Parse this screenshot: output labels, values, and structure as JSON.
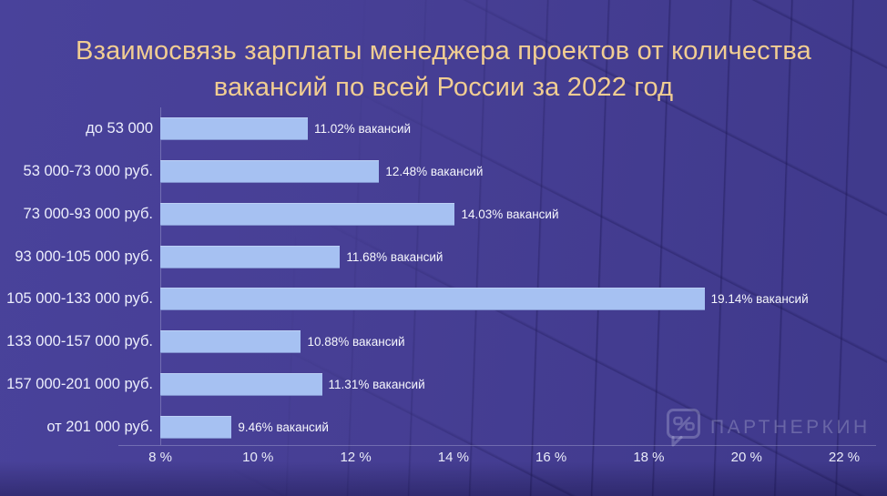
{
  "title": {
    "line1": "Взаимосвязь зарплаты менеджера проектов от количества",
    "line2": "вакансий по всей России за 2022 год"
  },
  "chart_data": {
    "type": "bar",
    "orientation": "horizontal",
    "title": "Взаимосвязь зарплаты менеджера проектов от количества вакансий по всей России за 2022 год",
    "categories": [
      "до 53 000",
      "53 000-73 000 руб.",
      "73 000-93 000 руб.",
      "93 000-105 000 руб.",
      "105 000-133 000 руб.",
      "133 000-157 000 руб.",
      "157 000-201 000 руб.",
      "от 201 000 руб."
    ],
    "values": [
      11.02,
      12.48,
      14.03,
      11.68,
      19.14,
      10.88,
      11.31,
      9.46
    ],
    "bar_labels": [
      "11.02% вакансий",
      "12.48% вакансий",
      "14.03% вакансий",
      "11.68% вакансий",
      "19.14% вакансий",
      "10.88% вакансий",
      "11.31% вакансий",
      "9.46% вакансий"
    ],
    "value_unit": "% вакансий",
    "x_ticks": [
      "8 %",
      "10 %",
      "12 %",
      "14 %",
      "16 %",
      "18 %",
      "20 %",
      "22 %"
    ],
    "xlim": [
      8,
      22
    ],
    "xlabel": "",
    "ylabel": "",
    "grid": false,
    "legend": false
  },
  "colors": {
    "background": "#453e92",
    "title_text": "#f1cd92",
    "bar_fill": "#a6c1f2",
    "category_text": "#eceefc",
    "value_text": "#f6f7fd",
    "tick_text": "#e9ebf8"
  },
  "watermark": {
    "text": "ПАРТНЕРКИН",
    "icon": "speech-bubble-percent-icon"
  }
}
